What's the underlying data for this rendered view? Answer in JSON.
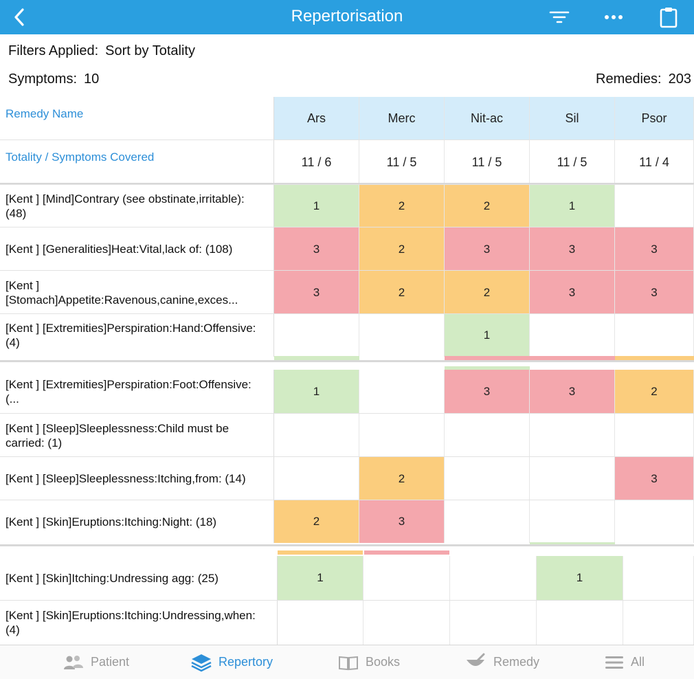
{
  "header": {
    "title": "Repertorisation",
    "back_icon": "chevron-left-icon",
    "filter_icon": "filter-icon",
    "more_icon": "more-icon",
    "clipboard_icon": "clipboard-icon",
    "bg_color": "#2a9fe0"
  },
  "info": {
    "filters_label": "Filters Applied:",
    "filters_value": "Sort by Totality",
    "symptoms_label": "Symptoms:",
    "symptoms_value": "10",
    "remedies_label": "Remedies:",
    "remedies_value": "203"
  },
  "table": {
    "remedy_name_label": "Remedy Name",
    "totality_label": "Totality / Symptoms Covered",
    "remedies": [
      "Ars",
      "Merc",
      "Nit-ac",
      "Sil",
      "Psor"
    ],
    "totals": [
      "11 / 6",
      "11 / 5",
      "11 / 5",
      "11 / 5",
      "11 / 4"
    ],
    "rows": [
      {
        "symptom": "[Kent ] [Mind]Contrary (see obstinate,irritable): (48)",
        "grades": [
          "1",
          "2",
          "2",
          "1",
          ""
        ]
      },
      {
        "symptom": "[Kent ] [Generalities]Heat:Vital,lack of: (108)",
        "grades": [
          "3",
          "2",
          "3",
          "3",
          "3"
        ]
      },
      {
        "symptom": "[Kent ] [Stomach]Appetite:Ravenous,canine,exces...",
        "grades": [
          "3",
          "2",
          "2",
          "3",
          "3"
        ]
      },
      {
        "symptom": "[Kent ] [Extremities]Perspiration:Hand:Offensive: (4)",
        "grades": [
          "",
          "",
          "1",
          "",
          ""
        ]
      },
      {
        "symptom": "[Kent ] [Extremities]Perspiration:Foot:Offensive: (...",
        "grades": [
          "1",
          "",
          "3",
          "3",
          "2"
        ]
      },
      {
        "symptom": "[Kent ] [Sleep]Sleeplessness:Child must be carried: (1)",
        "grades": [
          "",
          "",
          "",
          "",
          ""
        ]
      },
      {
        "symptom": "[Kent ] [Sleep]Sleeplessness:Itching,from: (14)",
        "grades": [
          "",
          "2",
          "",
          "",
          "3"
        ]
      },
      {
        "symptom": "[Kent ] [Skin]Eruptions:Itching:Night: (18)",
        "grades": [
          "2",
          "3",
          "",
          "",
          ""
        ]
      },
      {
        "symptom": "[Kent ] [Skin]Itching:Undressing agg: (25)",
        "grades": [
          "1",
          "",
          "",
          "1",
          ""
        ]
      },
      {
        "symptom": "[Kent ] [Skin]Eruptions:Itching:Undressing,when: (4)",
        "grades": [
          "",
          "",
          "",
          "",
          ""
        ]
      }
    ],
    "grade_colors": {
      "1": "#d2ebc4",
      "2": "#fbcd7d",
      "3": "#f4a7ad"
    }
  },
  "bottom_nav": [
    {
      "label": "Patient",
      "icon": "patient-icon",
      "active": false
    },
    {
      "label": "Repertory",
      "icon": "repertory-icon",
      "active": true
    },
    {
      "label": "Books",
      "icon": "book-icon",
      "active": false
    },
    {
      "label": "Remedy",
      "icon": "remedy-icon",
      "active": false
    },
    {
      "label": "All",
      "icon": "menu-icon",
      "active": false
    }
  ]
}
